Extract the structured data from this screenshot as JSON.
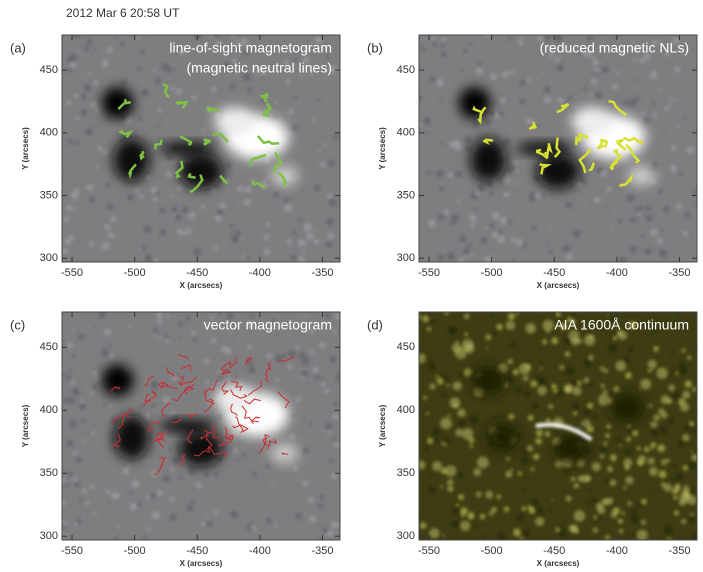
{
  "header": "2012 Mar 6   20:58 UT",
  "chart_data": [
    {
      "type": "image",
      "panel_label": "(a)",
      "annotations": [
        "line-of-sight magnetogram",
        "(magnetic neutral lines)"
      ],
      "xlabel": "X (arcsecs)",
      "ylabel": "Y (arcsecs)",
      "xlim": [
        -558,
        -336
      ],
      "ylim": [
        297,
        478
      ],
      "xticks": [
        -550,
        -500,
        -450,
        -400,
        -350
      ],
      "yticks": [
        300,
        350,
        400,
        450
      ],
      "line_color": "#7dc242"
    },
    {
      "type": "image",
      "panel_label": "(b)",
      "annotations": [
        "(reduced magnetic NLs)"
      ],
      "xlabel": "X (arcsecs)",
      "ylabel": "Y (arcsecs)",
      "xlim": [
        -558,
        -336
      ],
      "ylim": [
        297,
        478
      ],
      "xticks": [
        -550,
        -500,
        -450,
        -400,
        -350
      ],
      "yticks": [
        300,
        350,
        400,
        450
      ],
      "line_color": "#d8e030"
    },
    {
      "type": "image",
      "panel_label": "(c)",
      "annotations": [
        "vector magnetogram"
      ],
      "xlabel": "X (arcsecs)",
      "ylabel": "Y (arcsecs)",
      "xlim": [
        -558,
        -336
      ],
      "ylim": [
        297,
        478
      ],
      "xticks": [
        -550,
        -500,
        -450,
        -400,
        -350
      ],
      "yticks": [
        300,
        350,
        400,
        450
      ],
      "line_color": "#c83030"
    },
    {
      "type": "image",
      "panel_label": "(d)",
      "annotations": [
        "AIA 1600Å continuum"
      ],
      "xlabel": "X (arcsecs)",
      "ylabel": "Y (arcsecs)",
      "xlim": [
        -558,
        -336
      ],
      "ylim": [
        297,
        478
      ],
      "xticks": [
        -550,
        -500,
        -450,
        -400,
        -350
      ],
      "yticks": [
        300,
        350,
        400,
        450
      ]
    }
  ]
}
